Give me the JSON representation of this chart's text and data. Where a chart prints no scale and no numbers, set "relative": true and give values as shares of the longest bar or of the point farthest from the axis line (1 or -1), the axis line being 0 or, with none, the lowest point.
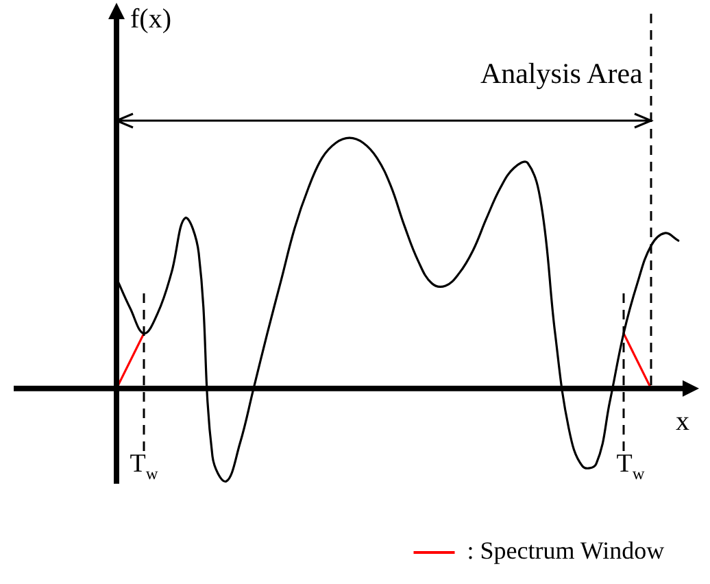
{
  "chart_data": {
    "type": "line",
    "relative": true,
    "xlabel": "x",
    "ylabel": "f(x)",
    "marker": "none",
    "legend": "bottom right",
    "categories": [
      null,
      null,
      null,
      null,
      null,
      null,
      null,
      null,
      null,
      null,
      null,
      null,
      null,
      null,
      null,
      null,
      null,
      null,
      null,
      null,
      null,
      null,
      null,
      null,
      null,
      null,
      null,
      null,
      null,
      null,
      null,
      null,
      null,
      null,
      null,
      null,
      null,
      null,
      null,
      null,
      null,
      null
    ],
    "series": [
      {
        "color": "#000000",
        "values": [
          0.44,
          0.32,
          0.22,
          0.3,
          0.46,
          0.68,
          0.54,
          -0.27,
          -0.37,
          -0.22,
          0,
          0.22,
          0.43,
          0.64,
          0.8,
          0.92,
          0.98,
          1.0,
          0.98,
          0.92,
          0.81,
          0.65,
          0.51,
          0.42,
          0.41,
          0.46,
          0.55,
          0.68,
          0.8,
          0.88,
          0.9,
          0.73,
          0.22,
          -0.16,
          -0.31,
          -0.3,
          -0.05,
          0.22,
          0.42,
          0.57,
          0.62,
          0.59
        ]
      },
      {
        "name": ": Spectrum Window",
        "color": "#ff0000",
        "values": [
          0,
          null,
          0.22,
          null,
          null,
          null,
          null,
          null,
          null,
          null,
          null,
          null,
          null,
          null,
          null,
          null,
          null,
          null,
          null,
          null,
          null,
          null,
          null,
          null,
          null,
          null,
          null,
          null,
          null,
          null,
          null,
          null,
          null,
          null,
          null,
          null,
          null,
          null,
          null,
          null,
          null,
          null
        ]
      },
      {
        "color": "#ff0000",
        "values": [
          null,
          null,
          null,
          null,
          null,
          null,
          null,
          null,
          null,
          null,
          null,
          null,
          null,
          null,
          null,
          null,
          null,
          null,
          null,
          null,
          null,
          null,
          null,
          null,
          null,
          null,
          null,
          null,
          null,
          null,
          null,
          null,
          null,
          null,
          null,
          null,
          null,
          0.22,
          null,
          0,
          null,
          null
        ]
      }
    ],
    "annotations": [
      "T$_{w}$",
      "T$_{w}$",
      "Analysis Area"
    ]
  }
}
